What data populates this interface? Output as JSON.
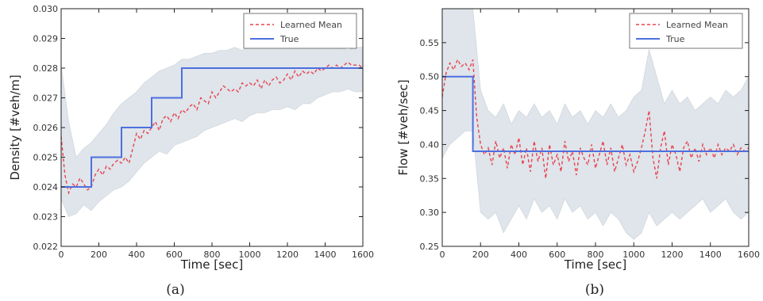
{
  "chart_data": [
    {
      "type": "line",
      "caption": "(a)",
      "xlabel": "Time [sec]",
      "ylabel": "Density [#veh/m]",
      "xlim": [
        0,
        1600
      ],
      "ylim": [
        0.022,
        0.03
      ],
      "xticks": [
        0,
        200,
        400,
        600,
        800,
        1000,
        1200,
        1400,
        1600
      ],
      "xtick_labels": [
        "0",
        "200",
        "400",
        "600",
        "800",
        "1000",
        "1200",
        "1400",
        "1600"
      ],
      "yticks": [
        0.022,
        0.023,
        0.024,
        0.025,
        0.026,
        0.027,
        0.028,
        0.029,
        0.03
      ],
      "ytick_labels": [
        "0.022",
        "0.023",
        "0.024",
        "0.025",
        "0.026",
        "0.027",
        "0.028",
        "0.029",
        "0.030"
      ],
      "legend_position": "top-right",
      "grid": false,
      "series": [
        {
          "name": "Learned Mean",
          "style": "dashed",
          "color": "#e8434f",
          "x": [
            0,
            20,
            40,
            60,
            80,
            100,
            120,
            140,
            160,
            180,
            200,
            220,
            240,
            260,
            280,
            300,
            320,
            340,
            360,
            380,
            400,
            420,
            440,
            460,
            480,
            500,
            520,
            540,
            560,
            580,
            600,
            620,
            640,
            660,
            680,
            700,
            720,
            740,
            760,
            780,
            800,
            820,
            840,
            860,
            880,
            900,
            920,
            940,
            960,
            980,
            1000,
            1020,
            1040,
            1060,
            1080,
            1100,
            1120,
            1140,
            1160,
            1180,
            1200,
            1220,
            1240,
            1260,
            1280,
            1300,
            1320,
            1340,
            1360,
            1380,
            1400,
            1420,
            1440,
            1460,
            1480,
            1500,
            1520,
            1540,
            1560,
            1580,
            1600
          ],
          "y": [
            0.0257,
            0.0244,
            0.0238,
            0.0241,
            0.024,
            0.0243,
            0.0241,
            0.0239,
            0.024,
            0.0244,
            0.0246,
            0.0244,
            0.0247,
            0.0246,
            0.0248,
            0.0249,
            0.0248,
            0.025,
            0.0248,
            0.0253,
            0.0258,
            0.0256,
            0.0259,
            0.0258,
            0.026,
            0.0262,
            0.0259,
            0.0263,
            0.0264,
            0.0262,
            0.0265,
            0.0263,
            0.0266,
            0.0265,
            0.0267,
            0.0268,
            0.0266,
            0.027,
            0.0269,
            0.0268,
            0.0272,
            0.027,
            0.0272,
            0.0274,
            0.0273,
            0.0272,
            0.0273,
            0.0272,
            0.0275,
            0.0274,
            0.0275,
            0.0274,
            0.0276,
            0.0273,
            0.0276,
            0.0274,
            0.0276,
            0.0277,
            0.0275,
            0.0276,
            0.0278,
            0.0276,
            0.0279,
            0.0277,
            0.0279,
            0.0278,
            0.0279,
            0.0278,
            0.028,
            0.0279,
            0.028,
            0.0281,
            0.028,
            0.0281,
            0.028,
            0.0281,
            0.0282,
            0.0281,
            0.0281,
            0.0281,
            0.028
          ]
        },
        {
          "name": "True",
          "style": "solid",
          "color": "#4d6fe0",
          "x": [
            0,
            160,
            160,
            320,
            320,
            480,
            480,
            640,
            640,
            1600
          ],
          "y": [
            0.024,
            0.024,
            0.025,
            0.025,
            0.026,
            0.026,
            0.027,
            0.027,
            0.028,
            0.028
          ]
        }
      ],
      "band": {
        "color": "#dfe5ea",
        "x": [
          0,
          40,
          80,
          120,
          160,
          200,
          240,
          280,
          320,
          360,
          400,
          440,
          480,
          520,
          560,
          600,
          640,
          680,
          720,
          760,
          800,
          840,
          880,
          920,
          960,
          1000,
          1040,
          1080,
          1120,
          1160,
          1200,
          1240,
          1280,
          1320,
          1360,
          1400,
          1440,
          1480,
          1520,
          1560,
          1600
        ],
        "upper": [
          0.0281,
          0.0262,
          0.025,
          0.0253,
          0.0255,
          0.0258,
          0.0261,
          0.0265,
          0.0268,
          0.027,
          0.0272,
          0.0275,
          0.0277,
          0.0279,
          0.028,
          0.0281,
          0.0283,
          0.0283,
          0.0284,
          0.0285,
          0.0285,
          0.0286,
          0.0286,
          0.0287,
          0.0286,
          0.0287,
          0.0288,
          0.0287,
          0.0288,
          0.0287,
          0.0288,
          0.0288,
          0.0287,
          0.0288,
          0.0287,
          0.0288,
          0.0287,
          0.0287,
          0.0286,
          0.0287,
          0.0287
        ],
        "lower": [
          0.0236,
          0.023,
          0.0231,
          0.0234,
          0.0232,
          0.0235,
          0.0237,
          0.0239,
          0.024,
          0.0242,
          0.0245,
          0.0248,
          0.025,
          0.0252,
          0.0251,
          0.0254,
          0.0255,
          0.0256,
          0.0257,
          0.0259,
          0.026,
          0.0261,
          0.0262,
          0.0263,
          0.0262,
          0.0264,
          0.0265,
          0.0265,
          0.0266,
          0.0266,
          0.0267,
          0.0266,
          0.0268,
          0.0268,
          0.027,
          0.0271,
          0.0272,
          0.0272,
          0.0273,
          0.0272,
          0.0272
        ]
      }
    },
    {
      "type": "line",
      "caption": "(b)",
      "xlabel": "Time [sec]",
      "ylabel": "Flow [#veh/sec]",
      "xlim": [
        0,
        1600
      ],
      "ylim": [
        0.25,
        0.6
      ],
      "xticks": [
        0,
        200,
        400,
        600,
        800,
        1000,
        1200,
        1400,
        1600
      ],
      "xtick_labels": [
        "0",
        "200",
        "400",
        "600",
        "800",
        "1000",
        "1200",
        "1400",
        "1600"
      ],
      "yticks": [
        0.25,
        0.3,
        0.35,
        0.4,
        0.45,
        0.5,
        0.55
      ],
      "ytick_labels": [
        "0.25",
        "0.30",
        "0.35",
        "0.40",
        "0.45",
        "0.50",
        "0.55"
      ],
      "legend_position": "top-right",
      "grid": false,
      "series": [
        {
          "name": "Learned Mean",
          "style": "dashed",
          "color": "#e8434f",
          "x": [
            0,
            20,
            40,
            60,
            80,
            100,
            120,
            140,
            160,
            180,
            200,
            220,
            240,
            260,
            280,
            300,
            320,
            340,
            360,
            380,
            400,
            420,
            440,
            460,
            480,
            500,
            520,
            540,
            560,
            580,
            600,
            620,
            640,
            660,
            680,
            700,
            720,
            740,
            760,
            780,
            800,
            820,
            840,
            860,
            880,
            900,
            920,
            940,
            960,
            980,
            1000,
            1020,
            1040,
            1060,
            1080,
            1100,
            1120,
            1140,
            1160,
            1180,
            1200,
            1220,
            1240,
            1260,
            1280,
            1300,
            1320,
            1340,
            1360,
            1380,
            1400,
            1420,
            1440,
            1460,
            1480,
            1500,
            1520,
            1540,
            1560,
            1580,
            1600
          ],
          "y": [
            0.47,
            0.505,
            0.52,
            0.51,
            0.525,
            0.515,
            0.52,
            0.51,
            0.525,
            0.44,
            0.4,
            0.385,
            0.395,
            0.37,
            0.405,
            0.38,
            0.395,
            0.365,
            0.4,
            0.385,
            0.41,
            0.37,
            0.395,
            0.36,
            0.405,
            0.375,
            0.395,
            0.35,
            0.4,
            0.37,
            0.385,
            0.36,
            0.405,
            0.375,
            0.39,
            0.355,
            0.395,
            0.38,
            0.37,
            0.4,
            0.365,
            0.385,
            0.405,
            0.37,
            0.395,
            0.36,
            0.38,
            0.4,
            0.37,
            0.385,
            0.36,
            0.375,
            0.395,
            0.42,
            0.45,
            0.38,
            0.35,
            0.395,
            0.42,
            0.37,
            0.4,
            0.385,
            0.36,
            0.395,
            0.405,
            0.38,
            0.395,
            0.375,
            0.4,
            0.385,
            0.395,
            0.38,
            0.4,
            0.385,
            0.395,
            0.39,
            0.4,
            0.385,
            0.395,
            0.39,
            0.395
          ]
        },
        {
          "name": "True",
          "style": "solid",
          "color": "#4d6fe0",
          "x": [
            0,
            160,
            160,
            1600
          ],
          "y": [
            0.5,
            0.5,
            0.39,
            0.39
          ]
        }
      ],
      "band": {
        "color": "#dfe5ea",
        "x": [
          0,
          40,
          80,
          120,
          160,
          200,
          240,
          280,
          320,
          360,
          400,
          440,
          480,
          520,
          560,
          600,
          640,
          680,
          720,
          760,
          800,
          840,
          880,
          920,
          960,
          1000,
          1040,
          1080,
          1120,
          1160,
          1200,
          1240,
          1280,
          1320,
          1360,
          1400,
          1440,
          1480,
          1520,
          1560,
          1600
        ],
        "upper": [
          0.6,
          0.6,
          0.6,
          0.6,
          0.6,
          0.48,
          0.45,
          0.44,
          0.46,
          0.43,
          0.45,
          0.44,
          0.46,
          0.44,
          0.45,
          0.43,
          0.46,
          0.44,
          0.45,
          0.43,
          0.45,
          0.44,
          0.46,
          0.44,
          0.45,
          0.47,
          0.48,
          0.54,
          0.5,
          0.46,
          0.48,
          0.46,
          0.47,
          0.45,
          0.46,
          0.47,
          0.46,
          0.48,
          0.47,
          0.48,
          0.5
        ],
        "lower": [
          0.38,
          0.4,
          0.41,
          0.42,
          0.42,
          0.3,
          0.29,
          0.3,
          0.27,
          0.29,
          0.31,
          0.29,
          0.32,
          0.3,
          0.31,
          0.29,
          0.32,
          0.3,
          0.31,
          0.29,
          0.3,
          0.28,
          0.3,
          0.29,
          0.27,
          0.26,
          0.27,
          0.3,
          0.28,
          0.29,
          0.3,
          0.29,
          0.3,
          0.31,
          0.32,
          0.3,
          0.31,
          0.32,
          0.3,
          0.29,
          0.3
        ]
      }
    }
  ]
}
